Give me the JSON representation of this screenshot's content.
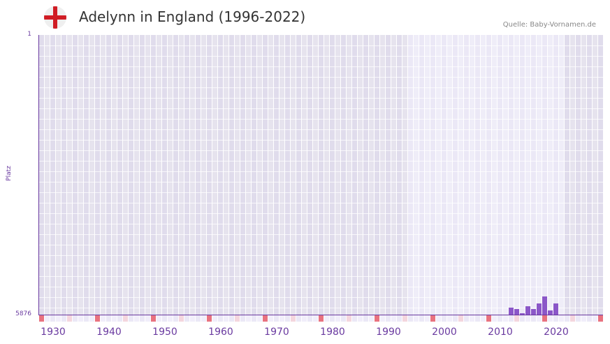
{
  "header": {
    "title": "Adelynn in England (1996-2022)",
    "source": "Quelle: Baby-Vornamen.de",
    "flag_icon": "england-flag-icon"
  },
  "colors": {
    "bar": "#8b57c8",
    "axis": "#6a3aa0",
    "decade_marker": "#e8727f",
    "half_decade_marker": "#f4d6de",
    "band_dark": "#e2dfec",
    "band_light": "#efedf8"
  },
  "chart_data": {
    "type": "bar",
    "title": "Adelynn in England (1996-2022)",
    "xlabel": "",
    "ylabel": "Platz",
    "ylim": [
      5876,
      1
    ],
    "y_ticks": [
      "1",
      "5876"
    ],
    "x_ticks": [
      "1930",
      "1940",
      "1950",
      "1960",
      "1970",
      "1980",
      "1990",
      "2000",
      "2010",
      "2020"
    ],
    "x_range": [
      1928,
      2028
    ],
    "data_range_highlight": [
      1996,
      2022
    ],
    "grid": true,
    "legend": null,
    "categories": [
      "2012",
      "2013",
      "2014",
      "2015",
      "2016",
      "2017",
      "2018",
      "2019",
      "2020"
    ],
    "values": [
      5729,
      5758,
      5847,
      5700,
      5758,
      5641,
      5494,
      5788,
      5641
    ],
    "value_meaning": "rank (Platz); lower is more popular"
  },
  "axis": {
    "y_top": "1",
    "y_bottom": "5876",
    "y_title": "Platz",
    "x_labels": [
      "1930",
      "1940",
      "1950",
      "1960",
      "1970",
      "1980",
      "1990",
      "2000",
      "2010",
      "2020"
    ]
  }
}
